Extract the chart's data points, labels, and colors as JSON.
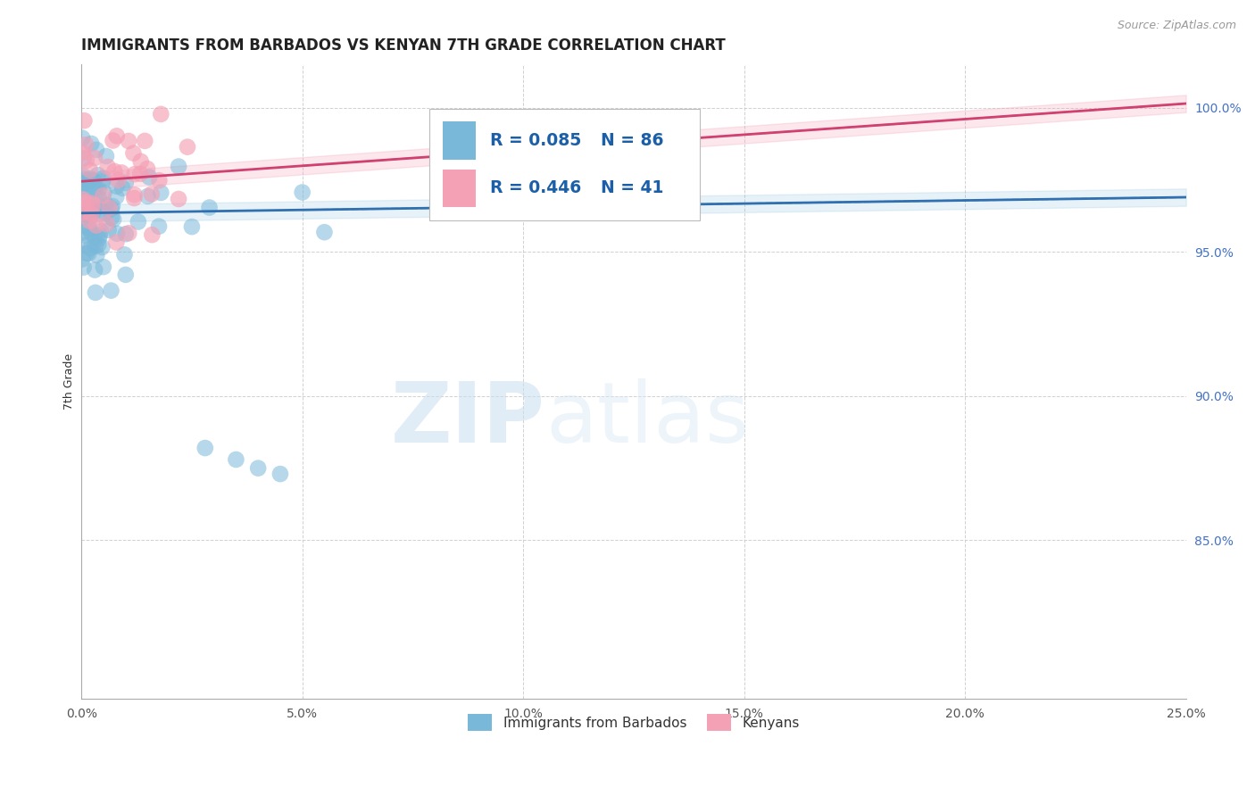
{
  "title": "IMMIGRANTS FROM BARBADOS VS KENYAN 7TH GRADE CORRELATION CHART",
  "source_text": "Source: ZipAtlas.com",
  "ylabel": "7th Grade",
  "xlim": [
    0.0,
    0.25
  ],
  "ylim": [
    0.795,
    1.015
  ],
  "xticks": [
    0.0,
    0.05,
    0.1,
    0.15,
    0.2,
    0.25
  ],
  "xtick_labels": [
    "0.0%",
    "5.0%",
    "10.0%",
    "15.0%",
    "20.0%",
    "25.0%"
  ],
  "yticks": [
    0.85,
    0.9,
    0.95,
    1.0
  ],
  "ytick_labels": [
    "85.0%",
    "90.0%",
    "95.0%",
    "100.0%"
  ],
  "blue_color": "#7ab8d9",
  "pink_color": "#f4a0b5",
  "blue_line_color": "#3070b0",
  "pink_line_color": "#d04070",
  "blue_dash_color": "#6090c0",
  "pink_dash_color": "#e07090",
  "R_blue": 0.085,
  "N_blue": 86,
  "R_pink": 0.446,
  "N_pink": 41,
  "watermark_zip": "ZIP",
  "watermark_atlas": "atlas",
  "legend_color": "#1a5fa8",
  "grid_color": "#cccccc",
  "blue_band_alpha": 0.18,
  "pink_band_alpha": 0.25,
  "blue_line_intercept": 0.9635,
  "blue_line_slope": 0.022,
  "pink_line_intercept": 0.9745,
  "pink_line_slope": 0.108
}
